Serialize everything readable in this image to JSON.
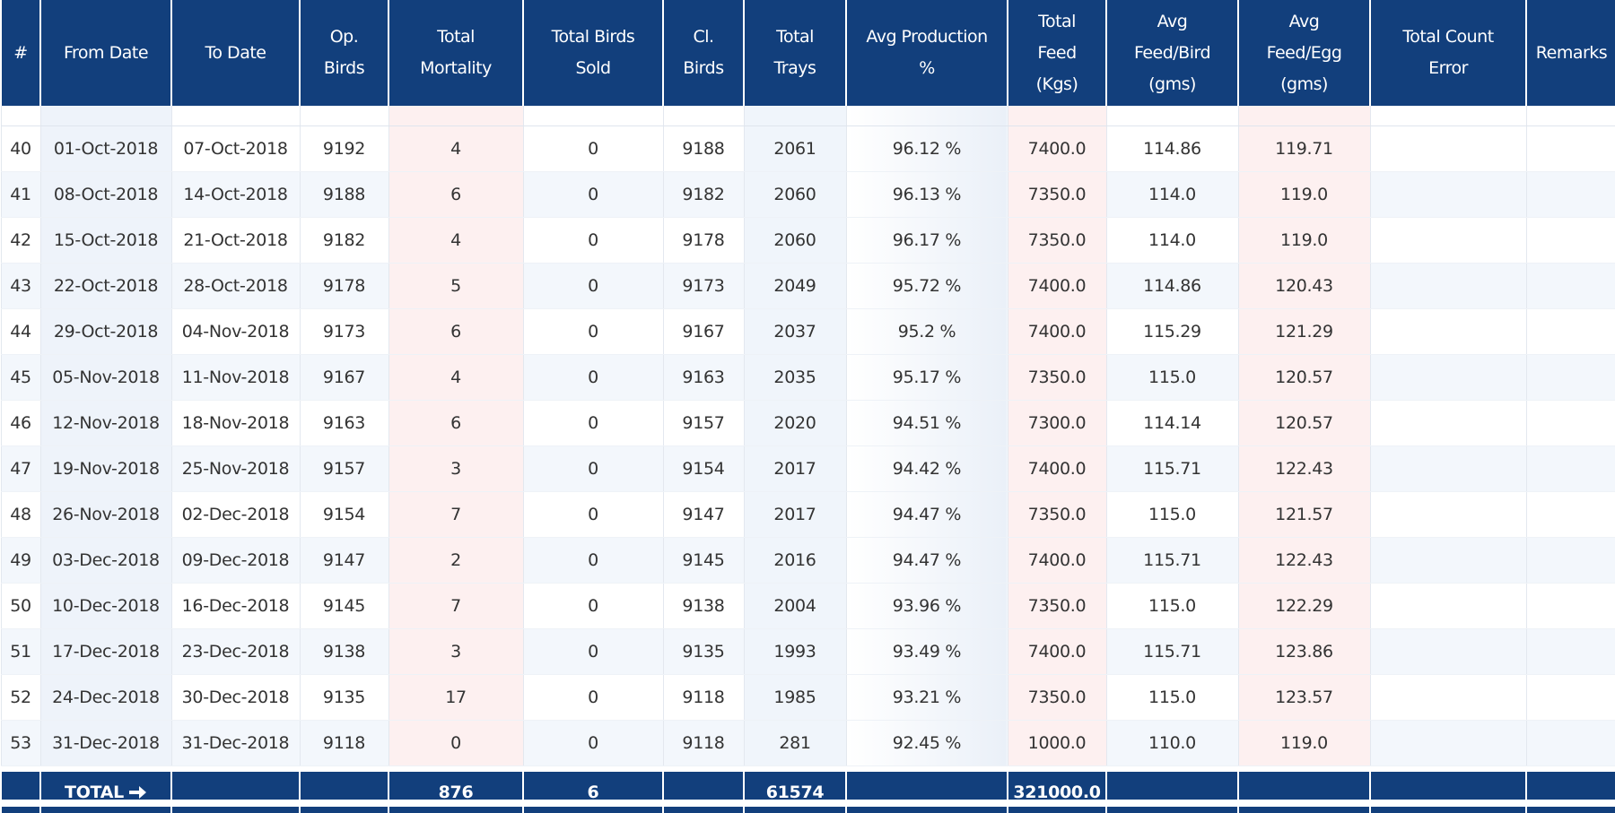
{
  "table": {
    "headers": [
      "#",
      "From Date",
      "To Date",
      "Op.\nBirds",
      "Total\nMortality",
      "Total Birds\nSold",
      "Cl.\nBirds",
      "Total\nTrays",
      "Avg Production\n%",
      "Total\nFeed\n(Kgs)",
      "Avg\nFeed/Bird\n(gms)",
      "Avg\nFeed/Egg\n(gms)",
      "Total Count\nError",
      "Remarks"
    ],
    "rows": [
      [
        "40",
        "01-Oct-2018",
        "07-Oct-2018",
        "9192",
        "4",
        "0",
        "9188",
        "2061",
        "96.12 %",
        "7400.0",
        "114.86",
        "119.71"
      ],
      [
        "41",
        "08-Oct-2018",
        "14-Oct-2018",
        "9188",
        "6",
        "0",
        "9182",
        "2060",
        "96.13 %",
        "7350.0",
        "114.0",
        "119.0"
      ],
      [
        "42",
        "15-Oct-2018",
        "21-Oct-2018",
        "9182",
        "4",
        "0",
        "9178",
        "2060",
        "96.17 %",
        "7350.0",
        "114.0",
        "119.0"
      ],
      [
        "43",
        "22-Oct-2018",
        "28-Oct-2018",
        "9178",
        "5",
        "0",
        "9173",
        "2049",
        "95.72 %",
        "7400.0",
        "114.86",
        "120.43"
      ],
      [
        "44",
        "29-Oct-2018",
        "04-Nov-2018",
        "9173",
        "6",
        "0",
        "9167",
        "2037",
        "95.2 %",
        "7400.0",
        "115.29",
        "121.29"
      ],
      [
        "45",
        "05-Nov-2018",
        "11-Nov-2018",
        "9167",
        "4",
        "0",
        "9163",
        "2035",
        "95.17 %",
        "7350.0",
        "115.0",
        "120.57"
      ],
      [
        "46",
        "12-Nov-2018",
        "18-Nov-2018",
        "9163",
        "6",
        "0",
        "9157",
        "2020",
        "94.51 %",
        "7300.0",
        "114.14",
        "120.57"
      ],
      [
        "47",
        "19-Nov-2018",
        "25-Nov-2018",
        "9157",
        "3",
        "0",
        "9154",
        "2017",
        "94.42 %",
        "7400.0",
        "115.71",
        "122.43"
      ],
      [
        "48",
        "26-Nov-2018",
        "02-Dec-2018",
        "9154",
        "7",
        "0",
        "9147",
        "2017",
        "94.47 %",
        "7350.0",
        "115.0",
        "121.57"
      ],
      [
        "49",
        "03-Dec-2018",
        "09-Dec-2018",
        "9147",
        "2",
        "0",
        "9145",
        "2016",
        "94.47 %",
        "7400.0",
        "115.71",
        "122.43"
      ],
      [
        "50",
        "10-Dec-2018",
        "16-Dec-2018",
        "9145",
        "7",
        "0",
        "9138",
        "2004",
        "93.96 %",
        "7350.0",
        "115.0",
        "122.29"
      ],
      [
        "51",
        "17-Dec-2018",
        "23-Dec-2018",
        "9138",
        "3",
        "0",
        "9135",
        "1993",
        "93.49 %",
        "7400.0",
        "115.71",
        "123.86"
      ],
      [
        "52",
        "24-Dec-2018",
        "30-Dec-2018",
        "9135",
        "17",
        "0",
        "9118",
        "1985",
        "93.21 %",
        "7350.0",
        "115.0",
        "123.57"
      ],
      [
        "53",
        "31-Dec-2018",
        "31-Dec-2018",
        "9118",
        "0",
        "0",
        "9118",
        "281",
        "92.45 %",
        "1000.0",
        "110.0",
        "119.0"
      ]
    ],
    "footer": {
      "label": "TOTAL",
      "mortality": "876",
      "sold": "6",
      "trays": "61574",
      "feed": "321000.0"
    }
  }
}
